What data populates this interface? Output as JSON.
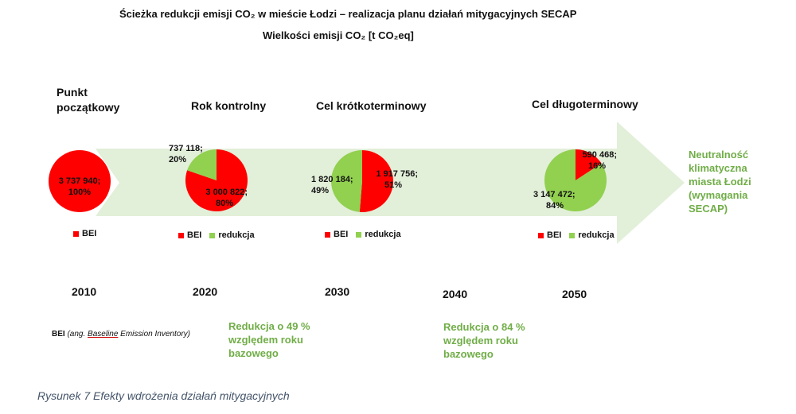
{
  "title_line1": "Ścieżka redukcji emisji CO₂   w mieście Łodzi – realizacja planu działań mitygacyjnych SECAP",
  "title_line2": "Wielkości emisji CO₂ [t CO₂eq]",
  "colors": {
    "bei": "#ff0000",
    "reduction": "#92d050",
    "arrow": "#e2efd9",
    "green_text": "#70ad47"
  },
  "chart_data": [
    {
      "type": "pie",
      "heading": "Punkt początkowy",
      "year": "2010",
      "slices": [
        {
          "name": "BEI",
          "value": 3737940,
          "label": "3 737 940;",
          "percent_label": "100%"
        }
      ],
      "legend": [
        "BEI"
      ]
    },
    {
      "type": "pie",
      "heading": "Rok kontrolny",
      "year": "2020",
      "slices": [
        {
          "name": "BEI",
          "value": 3000822,
          "label": "3 000 822;",
          "percent_label": "80%"
        },
        {
          "name": "redukcja",
          "value": 737118,
          "label": "737 118;",
          "percent_label": "20%"
        }
      ],
      "legend": [
        "BEI",
        "redukcja"
      ]
    },
    {
      "type": "pie",
      "heading": "Cel krótkoterminowy",
      "year": "2030",
      "slices": [
        {
          "name": "BEI",
          "value": 1917756,
          "label": "1 917 756;",
          "percent_label": "51%"
        },
        {
          "name": "redukcja",
          "value": 1820184,
          "label": "1 820 184;",
          "percent_label": "49%"
        }
      ],
      "legend": [
        "BEI",
        "redukcja"
      ]
    },
    {
      "type": "pie",
      "heading": "Cel długoterminowy",
      "year": "2050",
      "slices": [
        {
          "name": "BEI",
          "value": 590468,
          "label": "590 468;",
          "percent_label": "16%"
        },
        {
          "name": "redukcja",
          "value": 3147472,
          "label": "3 147 472;",
          "percent_label": "84%"
        }
      ],
      "legend": [
        "BEI",
        "redukcja"
      ]
    }
  ],
  "year_2040": "2040",
  "neutrality_text": [
    "Neutralność",
    "klimatyczna",
    "miasta Łodzi",
    "(wymagania",
    "SECAP)"
  ],
  "reduction_2030": [
    "Redukcja o 49 %",
    "względem roku",
    "bazowego"
  ],
  "reduction_2050": [
    "Redukcja o 84 %",
    "względem roku",
    "bazowego"
  ],
  "bei_note": {
    "abbr": "BEI",
    "open": "(ang. ",
    "underlined": "Baseline",
    "rest": " Emission Inventory)"
  },
  "caption": "Rysunek 7 Efekty wdrożenia działań mitygacyjnych"
}
